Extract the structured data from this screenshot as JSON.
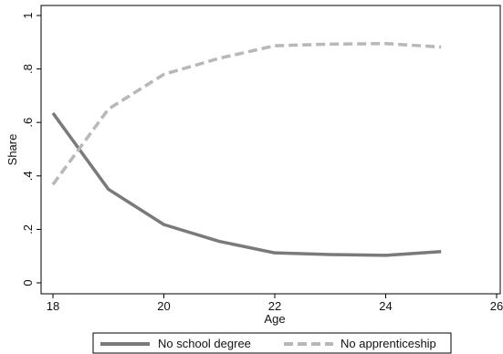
{
  "chart_data": {
    "type": "line",
    "x": [
      18,
      19,
      20,
      21,
      22,
      23,
      24,
      25
    ],
    "series": [
      {
        "name": "No school degree",
        "values": [
          0.635,
          0.35,
          0.218,
          0.155,
          0.112,
          0.106,
          0.103,
          0.117
        ],
        "color": "#7a7a7a",
        "style": "solid"
      },
      {
        "name": "No apprenticeship",
        "values": [
          0.368,
          0.65,
          0.78,
          0.84,
          0.887,
          0.893,
          0.895,
          0.882
        ],
        "color": "#b8b8b8",
        "style": "dashed"
      }
    ],
    "xlabel": "Age",
    "ylabel": "Share",
    "xlim": [
      18,
      26
    ],
    "ylim": [
      0,
      1
    ],
    "xticks": [
      18,
      20,
      22,
      24,
      26
    ],
    "yticks": [
      0,
      0.2,
      0.4,
      0.6,
      0.8,
      1
    ],
    "yticklabels": [
      "0",
      ".2",
      ".4",
      ".6",
      ".8",
      "1"
    ],
    "grid": false,
    "legend_position": "bottom"
  }
}
